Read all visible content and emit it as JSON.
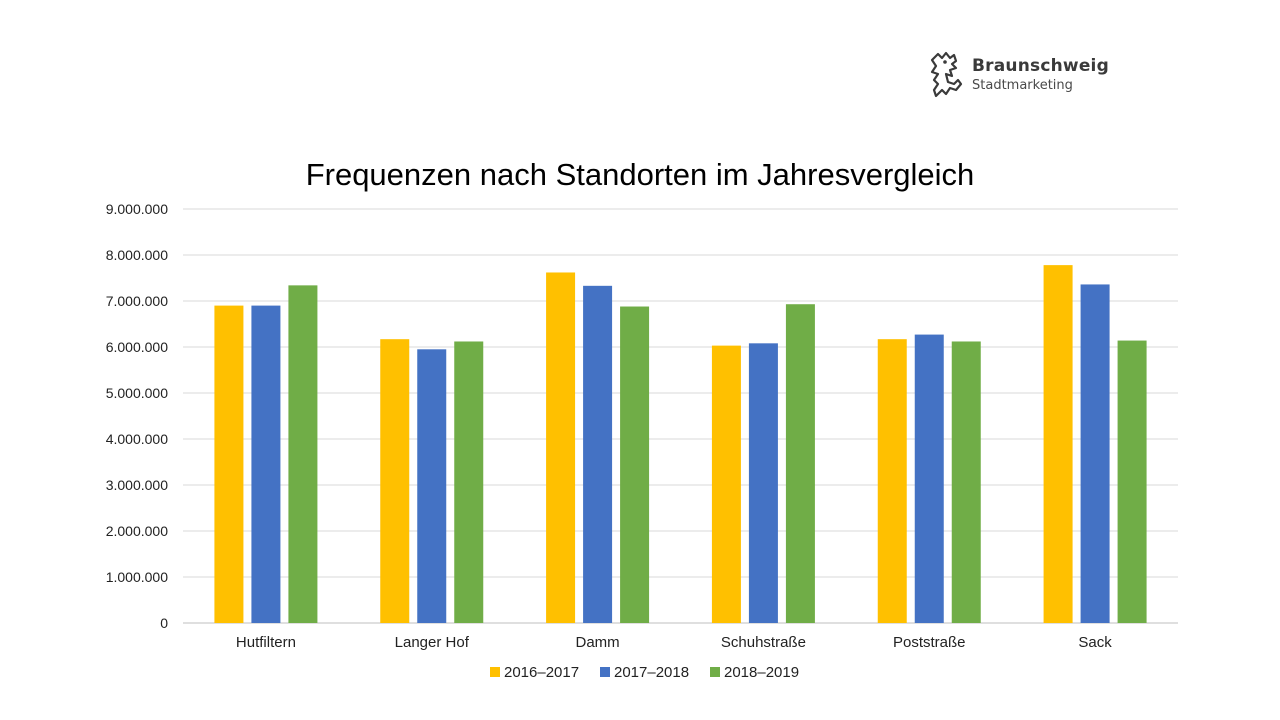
{
  "logo": {
    "name": "Braunschweig",
    "subtitle": "Stadtmarketing"
  },
  "colors": {
    "2016–2017": "#FFC000",
    "2017–2018": "#4472C4",
    "2018–2019": "#70AD47",
    "grid": "#D9D9D9",
    "axis": "#BFBFBF"
  },
  "chart_data": {
    "type": "bar",
    "title": "Frequenzen nach Standorten im Jahresvergleich",
    "xlabel": "",
    "ylabel": "",
    "ylim": [
      0,
      9000000
    ],
    "yticks": [
      0,
      1000000,
      2000000,
      3000000,
      4000000,
      5000000,
      6000000,
      7000000,
      8000000,
      9000000
    ],
    "ytick_labels": [
      "0",
      "1.000.000",
      "2.000.000",
      "3.000.000",
      "4.000.000",
      "5.000.000",
      "6.000.000",
      "7.000.000",
      "8.000.000",
      "9.000.000"
    ],
    "categories": [
      "Hutfiltern",
      "Langer Hof",
      "Damm",
      "Schuhstraße",
      "Poststraße",
      "Sack"
    ],
    "series": [
      {
        "name": "2016–2017",
        "values": [
          6900000,
          6170000,
          7620000,
          6030000,
          6170000,
          7780000
        ]
      },
      {
        "name": "2017–2018",
        "values": [
          6900000,
          5950000,
          7330000,
          6080000,
          6270000,
          7360000
        ]
      },
      {
        "name": "2018–2019",
        "values": [
          7340000,
          6120000,
          6880000,
          6930000,
          6120000,
          6140000
        ]
      }
    ],
    "grid": true,
    "legend_position": "bottom"
  }
}
